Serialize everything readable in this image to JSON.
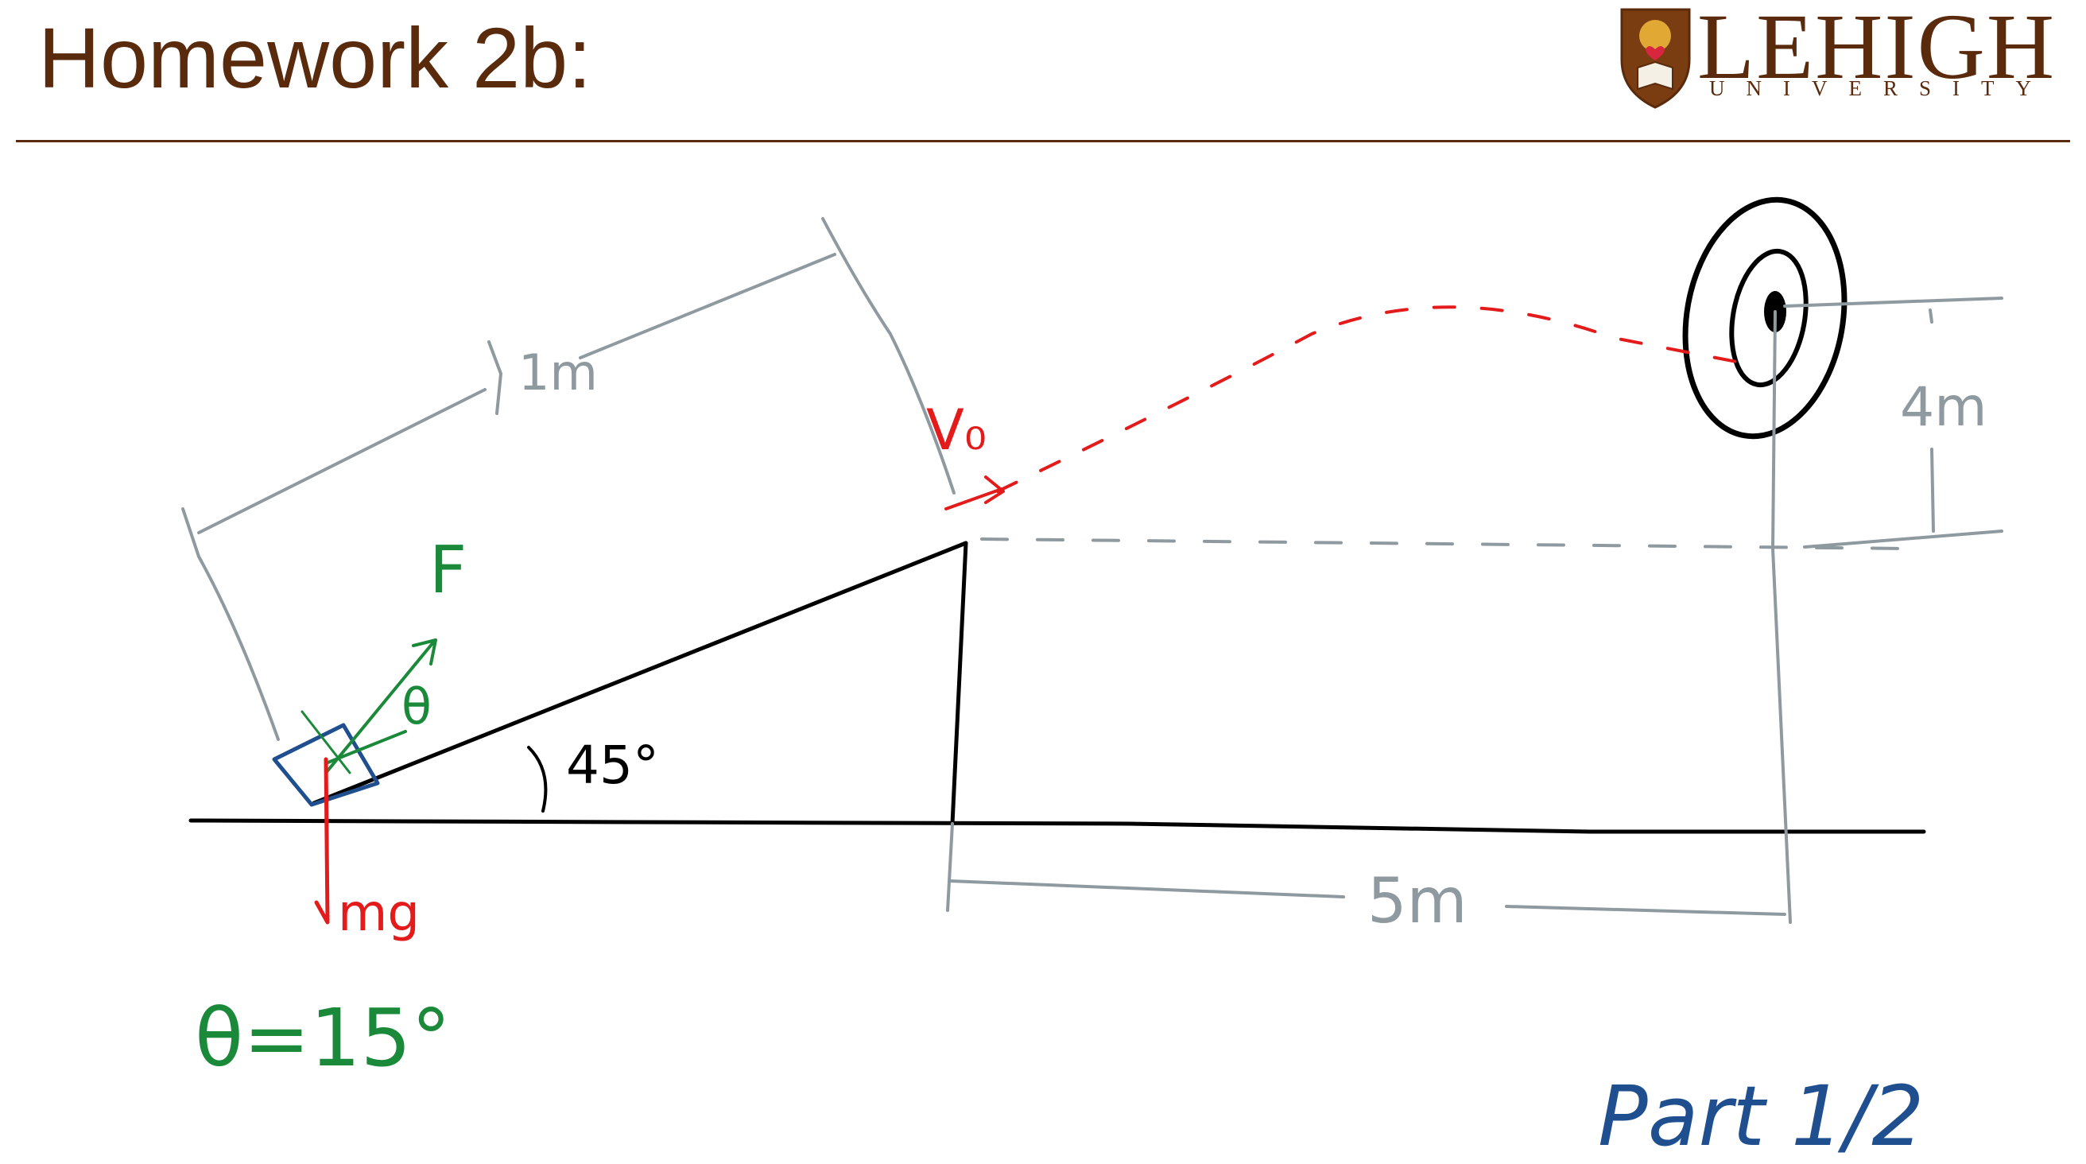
{
  "slide": {
    "title": "Homework 2b:",
    "logo": {
      "name": "LEHIGH",
      "subtitle": "UNIVERSITY"
    }
  },
  "diagram": {
    "ramp_length_label": "1m",
    "ramp_angle_label": "45°",
    "force_label": "F",
    "force_angle_symbol": "θ",
    "weight_label": "mg",
    "launch_velocity_label": "V₀",
    "target_height_label": "4m",
    "horizontal_distance_label": "5m",
    "given": "θ=15°",
    "part_label": "Part 1/2"
  },
  "colors": {
    "title": "#5a2a0d",
    "ink": "#000000",
    "dimension": "#8f9aa0",
    "red": "#e31b1b",
    "green": "#1a8a3a",
    "blue": "#1f4f8f"
  }
}
